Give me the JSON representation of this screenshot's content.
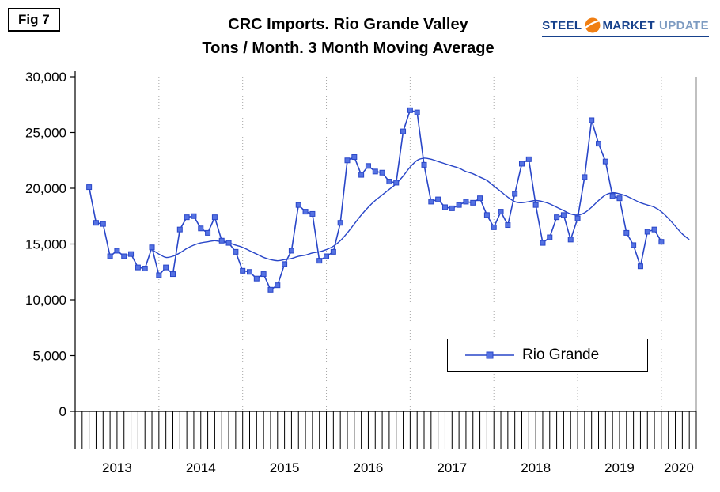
{
  "figure": {
    "label": "Fig 7"
  },
  "logo": {
    "steel": "STEEL",
    "market": "MARKET",
    "update": "UPDATE",
    "accent_color": "#f07f13",
    "text_color": "#16418c",
    "update_color": "#7d9bc1"
  },
  "chart_data": {
    "type": "line",
    "title": "CRC Imports. Rio Grande Valley",
    "subtitle": "Tons / Month. 3 Month Moving Average",
    "x_range": {
      "start": "2013-01",
      "end": "2020-06"
    },
    "ylim": [
      0,
      30000
    ],
    "y_ticks": [
      0,
      5000,
      10000,
      15000,
      20000,
      25000,
      30000
    ],
    "y_tick_labels": [
      "0",
      "5,000",
      "10,000",
      "15,000",
      "20,000",
      "25,000",
      "30,000"
    ],
    "year_labels": [
      "2013",
      "2014",
      "2015",
      "2016",
      "2017",
      "2018",
      "2019",
      "2020"
    ],
    "grid": {
      "vertical_yearly_dotted": true,
      "horizontal": false
    },
    "legend": {
      "position": "inside-bottom-right",
      "entries": [
        "Rio Grande"
      ]
    },
    "series": [
      {
        "name": "Rio Grande",
        "style": "line-with-square-markers",
        "color": "#2946c8",
        "marker_fill": "#5572e2",
        "start": "2013-03",
        "values": [
          20100,
          16900,
          16800,
          13900,
          14400,
          13900,
          14100,
          12900,
          12800,
          14700,
          12200,
          12900,
          12300,
          16300,
          17400,
          17500,
          16400,
          16000,
          17400,
          15300,
          15100,
          14300,
          12600,
          12500,
          11900,
          12300,
          10900,
          11300,
          13200,
          14400,
          18500,
          17900,
          17700,
          13500,
          13900,
          14300,
          16900,
          22500,
          22800,
          21200,
          22000,
          21500,
          21400,
          20600,
          20500,
          25100,
          27000,
          26800,
          22100,
          18800,
          19000,
          18300,
          18200,
          18500,
          18800,
          18700,
          19100,
          17600,
          16500,
          17900,
          16700,
          19500,
          22200,
          22600,
          18500,
          15100,
          15600,
          17400,
          17600,
          15400,
          17300,
          21000,
          26100,
          24000,
          22400,
          19300,
          19100,
          16000,
          14900,
          13000,
          16100,
          16300,
          15200
        ]
      },
      {
        "name": "3 Month Moving Average",
        "style": "smooth-line",
        "color": "#2946c8",
        "start": "2013-12",
        "values": [
          14500,
          14100,
          13800,
          13900,
          14200,
          14600,
          14900,
          15100,
          15200,
          15300,
          15200,
          15100,
          14900,
          14700,
          14400,
          14100,
          13800,
          13600,
          13500,
          13600,
          13700,
          13900,
          14000,
          14200,
          14300,
          14500,
          14800,
          15300,
          16000,
          16800,
          17600,
          18300,
          18900,
          19400,
          19900,
          20400,
          21100,
          21900,
          22500,
          22700,
          22600,
          22400,
          22200,
          22000,
          21800,
          21500,
          21300,
          21000,
          20700,
          20200,
          19700,
          19200,
          18800,
          18700,
          18800,
          18900,
          18800,
          18600,
          18300,
          18000,
          17700,
          17600,
          17800,
          18300,
          18900,
          19400,
          19600,
          19500,
          19300,
          19000,
          18700,
          18500,
          18300,
          17900,
          17300,
          16600,
          15900,
          15400
        ]
      }
    ]
  }
}
